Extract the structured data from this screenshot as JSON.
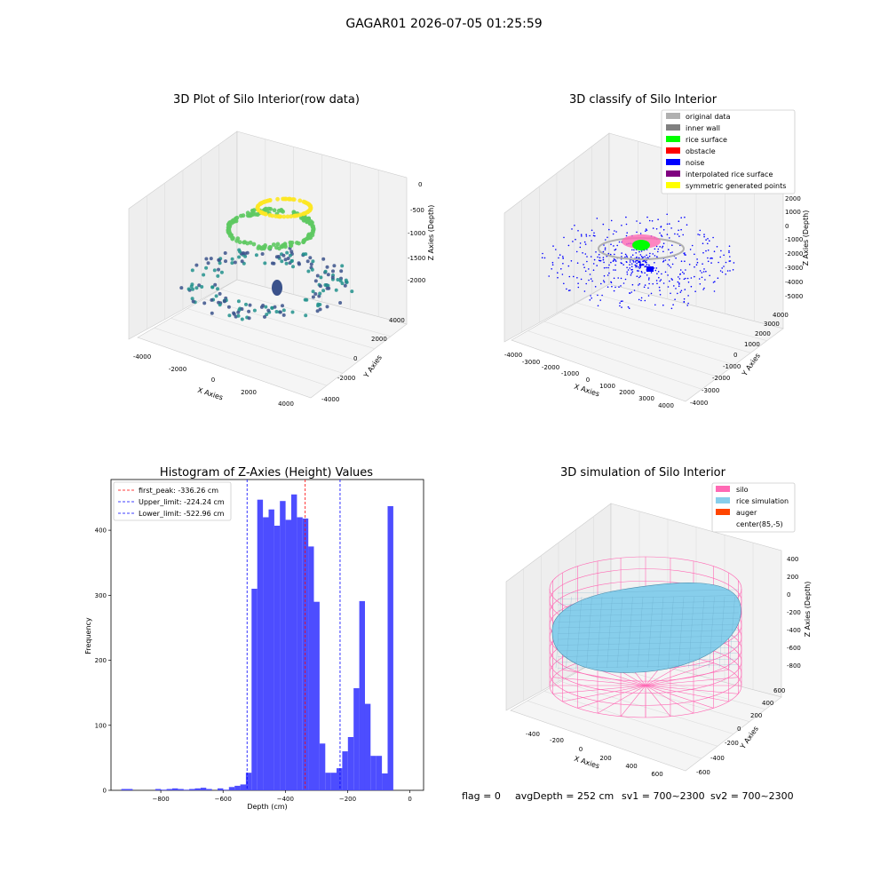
{
  "figure": {
    "suptitle": "GAGAR01 2026-07-05 01:25:59",
    "footer": {
      "flag": "flag = 0",
      "avg_depth": "avgDepth = 252 cm",
      "sv1": "sv1 = 700~2300",
      "sv2": "sv2 = 700~2300"
    }
  },
  "panel_raw": {
    "title": "3D Plot of Silo Interior(row data)",
    "xlabel": "X Axies",
    "ylabel": "Y Axies",
    "zlabel": "Z Axies (Depth)",
    "xticks": [
      "-4000",
      "-2000",
      "0",
      "2000",
      "4000"
    ],
    "yticks": [
      "-4000",
      "-2000",
      "0",
      "2000",
      "4000"
    ],
    "zticks": [
      "0",
      "-500",
      "-1000",
      "-1500",
      "-2000"
    ],
    "colors": {
      "low": "#3b528b",
      "mid": "#21918c",
      "high": "#5ec962",
      "top": "#fde725"
    }
  },
  "panel_classify": {
    "title": "3D classify of Silo Interior",
    "xlabel": "X Axies",
    "ylabel": "Y Axies",
    "zlabel": "Z Axies (Depth)",
    "xticks": [
      "-4000",
      "-3000",
      "-2000",
      "-1000",
      "0",
      "1000",
      "2000",
      "3000",
      "4000"
    ],
    "yticks": [
      "-4000",
      "-3000",
      "-2000",
      "-1000",
      "0",
      "1000",
      "2000",
      "3000",
      "4000"
    ],
    "zticks": [
      "2000",
      "1000",
      "0",
      "-1000",
      "-2000",
      "-3000",
      "-4000",
      "-5000"
    ],
    "legend": [
      {
        "label": "original data",
        "color": "#b0b0b0"
      },
      {
        "label": "inner wall",
        "color": "#808080"
      },
      {
        "label": "rice surface",
        "color": "#00ff00"
      },
      {
        "label": "obstacle",
        "color": "#ff0000"
      },
      {
        "label": "noise",
        "color": "#0000ff"
      },
      {
        "label": "interpolated rice surface",
        "color": "#800080"
      },
      {
        "label": "symmetric generated points",
        "color": "#ffff00"
      }
    ]
  },
  "chart_data": {
    "type": "bar",
    "title": "Histogram of Z-Axies (Height) Values",
    "xlabel": "Depth (cm)",
    "ylabel": "Frequency",
    "xlim": [
      -960,
      44
    ],
    "ylim": [
      0,
      478
    ],
    "xticks": [
      -800,
      -600,
      -400,
      -200,
      0
    ],
    "yticks": [
      0,
      100,
      200,
      300,
      400
    ],
    "bar_color": "#4d4dff",
    "bins": {
      "start": -927,
      "width": 18.2,
      "counts": [
        2,
        2,
        0,
        0,
        0,
        0,
        2,
        1,
        2,
        3,
        2,
        1,
        2,
        3,
        4,
        2,
        0,
        3,
        1,
        5,
        7,
        9,
        27,
        310,
        447,
        420,
        432,
        407,
        445,
        416,
        455,
        420,
        418,
        375,
        290,
        72,
        27,
        27,
        34,
        60,
        82,
        157,
        291,
        133,
        53,
        53,
        26,
        437
      ]
    },
    "vlines": [
      {
        "label": "first_peak: -336.26 cm",
        "x": -336.26,
        "color": "#ff0000"
      },
      {
        "label": "Upper_limit: -224.24 cm",
        "x": -224.24,
        "color": "#0000ff"
      },
      {
        "label": "Lower_limit: -522.96 cm",
        "x": -522.96,
        "color": "#0000ff"
      }
    ],
    "legend_position": "upper-left"
  },
  "panel_sim": {
    "title": "3D simulation of Silo Interior",
    "xlabel": "X Axies",
    "ylabel": "Y Axies",
    "zlabel": "Z Axies (Depth)",
    "xticks": [
      "-400",
      "-200",
      "0",
      "200",
      "400",
      "600"
    ],
    "yticks": [
      "-600",
      "-400",
      "-200",
      "0",
      "200",
      "400",
      "600"
    ],
    "zticks": [
      "400",
      "200",
      "0",
      "-200",
      "-400",
      "-600",
      "-800"
    ],
    "legend": [
      {
        "label": "silo",
        "color": "#ff69b4"
      },
      {
        "label": "rice simulation",
        "color": "#87ceeb"
      },
      {
        "label": "auger",
        "color": "#ff4500"
      },
      {
        "label": "center(85,-5)",
        "color": "#ffffff"
      }
    ]
  }
}
